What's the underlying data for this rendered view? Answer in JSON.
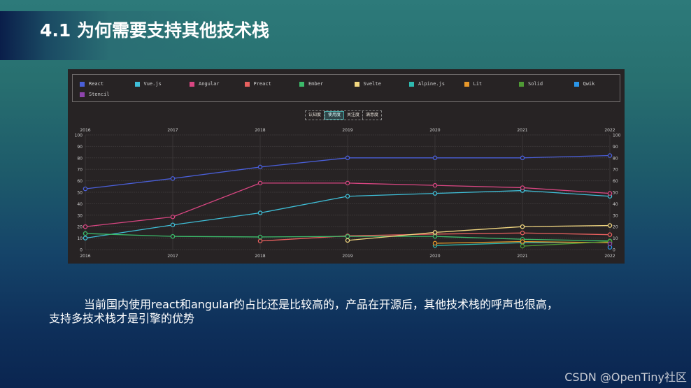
{
  "slide": {
    "title": "4.1 为何需要支持其他技术栈",
    "body_line1": "当前国内使用react和angular的占比还是比较高的，产品在开源后，其他技术栈的呼声也很高，",
    "body_line2": "支持多技术栈才是引擎的优势",
    "watermark": "CSDN @OpenTiny社区"
  },
  "chart_tabs": [
    {
      "label": "认知度",
      "active": false
    },
    {
      "label": "使用度",
      "active": true
    },
    {
      "label": "关注度",
      "active": false
    },
    {
      "label": "满意度",
      "active": false
    }
  ],
  "chart_data": {
    "type": "line",
    "title": "使用度",
    "x": [
      "2016",
      "2017",
      "2018",
      "2019",
      "2020",
      "2021",
      "2022"
    ],
    "ylim": [
      0,
      100
    ],
    "yticks": [
      0,
      10,
      20,
      30,
      40,
      50,
      60,
      70,
      80,
      90,
      100
    ],
    "grid": true,
    "legend_position": "top",
    "series": [
      {
        "name": "React",
        "color": "#4a5fd9",
        "values": [
          53,
          62,
          72,
          80,
          80,
          80,
          82
        ]
      },
      {
        "name": "Vue.js",
        "color": "#3fbfd8",
        "values": [
          10,
          21.5,
          32,
          46.5,
          49,
          51.5,
          46.5
        ]
      },
      {
        "name": "Angular",
        "color": "#d94682",
        "values": [
          20,
          28.5,
          58,
          58,
          56,
          54,
          49
        ]
      },
      {
        "name": "Preact",
        "color": "#e8605e",
        "values": [
          null,
          null,
          7.5,
          12,
          13.5,
          14.5,
          13
        ]
      },
      {
        "name": "Ember",
        "color": "#3cba6a",
        "values": [
          14,
          11.5,
          11,
          11.5,
          11.5,
          9,
          7.5
        ]
      },
      {
        "name": "Svelte",
        "color": "#f2d780",
        "values": [
          null,
          null,
          null,
          8,
          15,
          20,
          21
        ]
      },
      {
        "name": "Alpine.js",
        "color": "#2fbab0",
        "values": [
          null,
          null,
          null,
          null,
          3.5,
          6,
          6.5
        ]
      },
      {
        "name": "Lit",
        "color": "#e8982a",
        "values": [
          null,
          null,
          null,
          null,
          5.5,
          7,
          6
        ]
      },
      {
        "name": "Solid",
        "color": "#4f9a35",
        "values": [
          null,
          null,
          null,
          null,
          null,
          3,
          7
        ]
      },
      {
        "name": "Qwik",
        "color": "#2a95e8",
        "values": [
          null,
          null,
          null,
          null,
          null,
          null,
          2
        ]
      },
      {
        "name": "Stencil",
        "color": "#8e44ad",
        "values": [
          null,
          null,
          null,
          null,
          null,
          null,
          5
        ]
      }
    ]
  }
}
